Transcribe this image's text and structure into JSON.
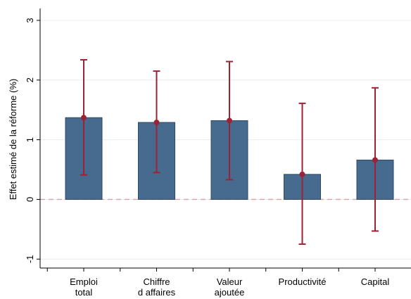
{
  "chart_data": {
    "type": "bar",
    "ylabel": "Effet estimé de la réforme (%)",
    "xlabel": "",
    "ylim": [
      -1.15,
      3.2
    ],
    "yticks": [
      -1,
      0,
      1,
      2,
      3
    ],
    "ytick_labels": [
      "-1",
      "0",
      "1",
      "2",
      "3"
    ],
    "categories": [
      [
        "Emploi",
        "total"
      ],
      [
        "Chiffre",
        "d affaires"
      ],
      [
        "Valeur",
        "ajoutée"
      ],
      [
        "Productivité"
      ],
      [
        "Capital"
      ]
    ],
    "series": [
      {
        "values": [
          1.37,
          1.29,
          1.32,
          0.42,
          0.66
        ],
        "ci_low": [
          0.41,
          0.45,
          0.33,
          -0.75,
          -0.53
        ],
        "ci_high": [
          2.34,
          2.15,
          2.31,
          1.61,
          1.87
        ]
      }
    ],
    "reference_line": 0,
    "grid": "horizontal",
    "legend": "none",
    "colors": {
      "bar_fill": "#476b8e",
      "bar_stroke": "#2c4a68",
      "ci": "#9b2335",
      "point": "#9b2335",
      "reference": "#d8a2a8",
      "grid": "#e8ecf0"
    }
  }
}
